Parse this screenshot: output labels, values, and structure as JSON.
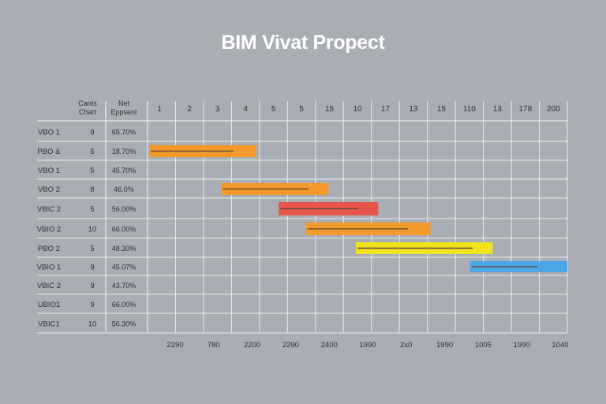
{
  "chart_data": {
    "type": "bar",
    "subtype": "gantt",
    "title": "BIM Vivat Propect",
    "column_headers": [
      "Cants Chart",
      "Net Eppsent"
    ],
    "timeline_headers": [
      "1",
      "2",
      "3",
      "4",
      "5",
      "5",
      "15",
      "10",
      "17",
      "13",
      "15",
      "110",
      "13",
      "178",
      "200"
    ],
    "bottom_labels": [
      "2290",
      "780",
      "2200",
      "2290",
      "2400",
      "1990",
      "2x0",
      "1990",
      "1005",
      "1990",
      "1040"
    ],
    "rows": [
      {
        "name": "VBO 1",
        "count": "9",
        "pct": "65.70%"
      },
      {
        "name": "PBO &",
        "count": "5",
        "pct": "18.70%"
      },
      {
        "name": "VBO 1",
        "count": "5",
        "pct": "45.70%"
      },
      {
        "name": "VBO 2",
        "count": "8",
        "pct": "46.0%"
      },
      {
        "name": "VBIC 2",
        "count": "5",
        "pct": "56.00%"
      },
      {
        "name": "VBIO 2",
        "count": "10",
        "pct": "66.00%"
      },
      {
        "name": "PBO 2",
        "count": "5",
        "pct": "48.30%"
      },
      {
        "name": "VBIO 1",
        "count": "9",
        "pct": "45.07%"
      },
      {
        "name": "VBIC 2",
        "count": "9",
        "pct": "43.70%"
      },
      {
        "name": "UBIO1",
        "count": "9",
        "pct": "66.00%"
      },
      {
        "name": "VBIC1",
        "count": "10",
        "pct": "56.30%"
      }
    ],
    "tasks": [
      {
        "row": 1,
        "start": 0.0,
        "end": 2.15,
        "progress": 1.7,
        "color": "#f39a2b"
      },
      {
        "row": 3,
        "start": 1.45,
        "end": 3.6,
        "progress": 3.2,
        "color": "#f39a2b"
      },
      {
        "row": 4,
        "start": 2.6,
        "end": 4.6,
        "progress": 4.2,
        "color": "#e8534a"
      },
      {
        "row": 5,
        "start": 3.15,
        "end": 5.65,
        "progress": 5.2,
        "color": "#f39a2b"
      },
      {
        "row": 6,
        "start": 4.15,
        "end": 6.9,
        "progress": 6.5,
        "color": "#f2e21c"
      },
      {
        "row": 7,
        "start": 6.45,
        "end": 8.4,
        "progress": 7.8,
        "color": "#4aa6e6"
      }
    ],
    "time_range": [
      0,
      8.4
    ],
    "grid": true
  }
}
